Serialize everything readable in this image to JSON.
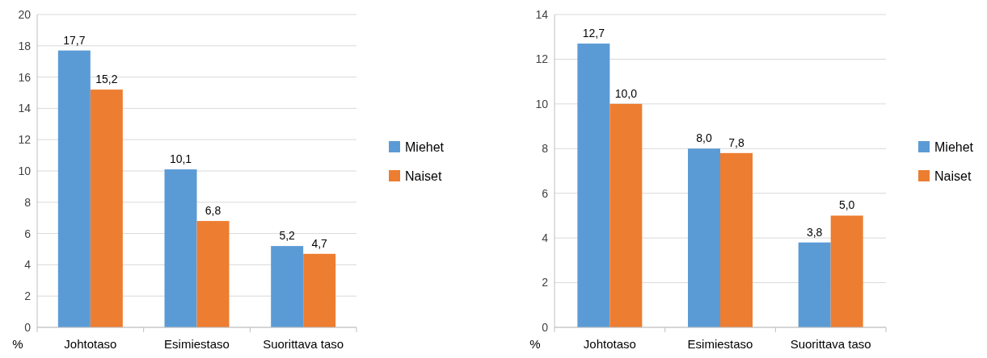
{
  "chart_data": [
    {
      "type": "bar",
      "ylabel": "%",
      "categories": [
        "Johtotaso",
        "Esimiestaso",
        "Suorittava taso"
      ],
      "series": [
        {
          "name": "Miehet",
          "color": "#5b9bd5",
          "values": [
            17.7,
            10.1,
            5.2
          ],
          "value_labels": [
            "17,7",
            "10,1",
            "5,2"
          ]
        },
        {
          "name": "Naiset",
          "color": "#ed7d31",
          "values": [
            15.2,
            6.8,
            4.7
          ],
          "value_labels": [
            "15,2",
            "6,8",
            "4,7"
          ]
        }
      ],
      "ylim": [
        0,
        20
      ],
      "yticks": [
        0,
        2,
        4,
        6,
        8,
        10,
        12,
        14,
        16,
        18,
        20
      ],
      "grid": "y",
      "legend": "right"
    },
    {
      "type": "bar",
      "ylabel": "%",
      "categories": [
        "Johtotaso",
        "Esimiestaso",
        "Suorittava taso"
      ],
      "series": [
        {
          "name": "Miehet",
          "color": "#5b9bd5",
          "values": [
            12.7,
            8.0,
            3.8
          ],
          "value_labels": [
            "12,7",
            "8,0",
            "3,8"
          ]
        },
        {
          "name": "Naiset",
          "color": "#ed7d31",
          "values": [
            10.0,
            7.8,
            5.0
          ],
          "value_labels": [
            "10,0",
            "7,8",
            "5,0"
          ]
        }
      ],
      "ylim": [
        0,
        14
      ],
      "yticks": [
        0,
        2,
        4,
        6,
        8,
        10,
        12,
        14
      ],
      "grid": "y",
      "legend": "right"
    }
  ]
}
